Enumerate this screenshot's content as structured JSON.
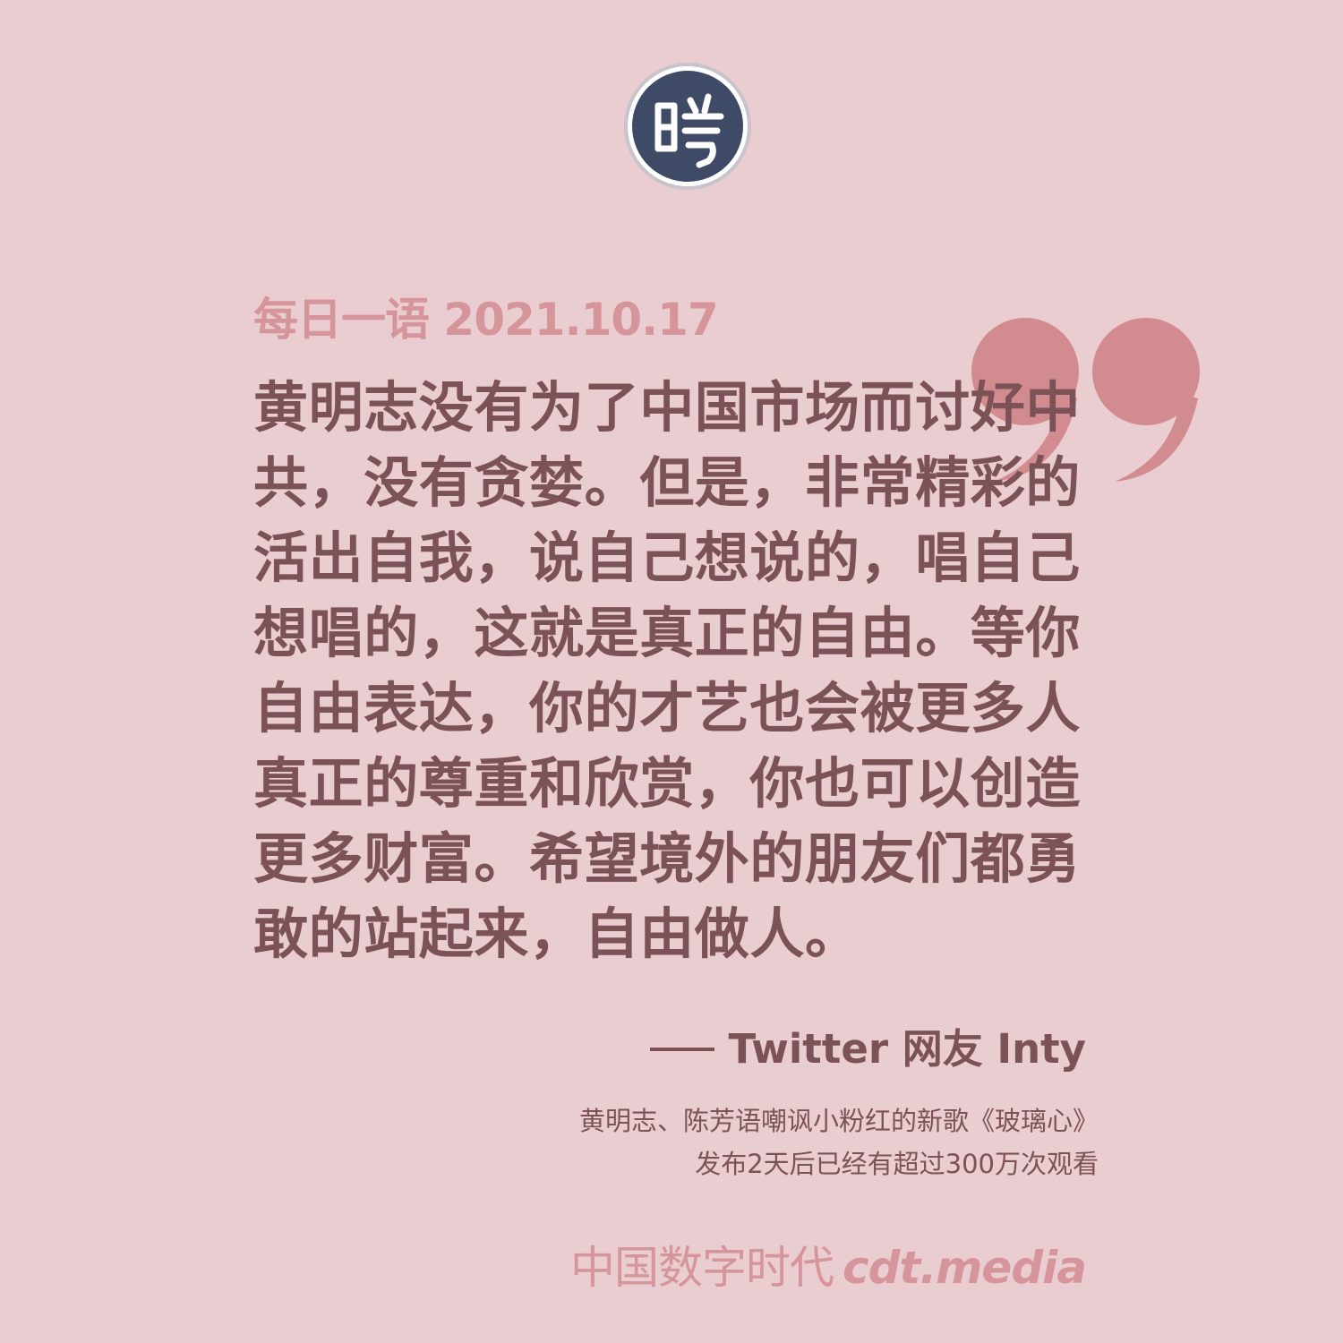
{
  "logo": {
    "icon": "cdt-seal-logo-icon",
    "colors": {
      "ring": "#ffffff",
      "fill": "#3e4a66",
      "stroke": "#ffffff"
    }
  },
  "quote_mark": {
    "icon": "closing-quotation-mark-icon",
    "color": "#d28b8f"
  },
  "header": {
    "label": "每日一语",
    "date": "2021.10.17"
  },
  "quote": {
    "text": "黄明志没有为了中国市场而讨好中共，没有贪婪。但是，非常精彩的活出自我，说自己想说的，唱自己想唱的，这就是真正的自由。等你自由表达，你的才艺也会被更多人真正的尊重和欣赏，你也可以创造更多财富。希望境外的朋友们都勇敢的站起来，自由做人。"
  },
  "attribution": {
    "text": "Twitter 网友 Inty"
  },
  "context": {
    "line1": "黄明志、陈芳语嘲讽小粉红的新歌《玻璃心》",
    "line2": "发布2天后已经有超过300万次观看"
  },
  "footer": {
    "brand_cn": "中国数字时代",
    "site": "cdt.media"
  },
  "colors": {
    "background": "#eacdd0",
    "accent": "#d5959a",
    "text": "#7b5256"
  }
}
